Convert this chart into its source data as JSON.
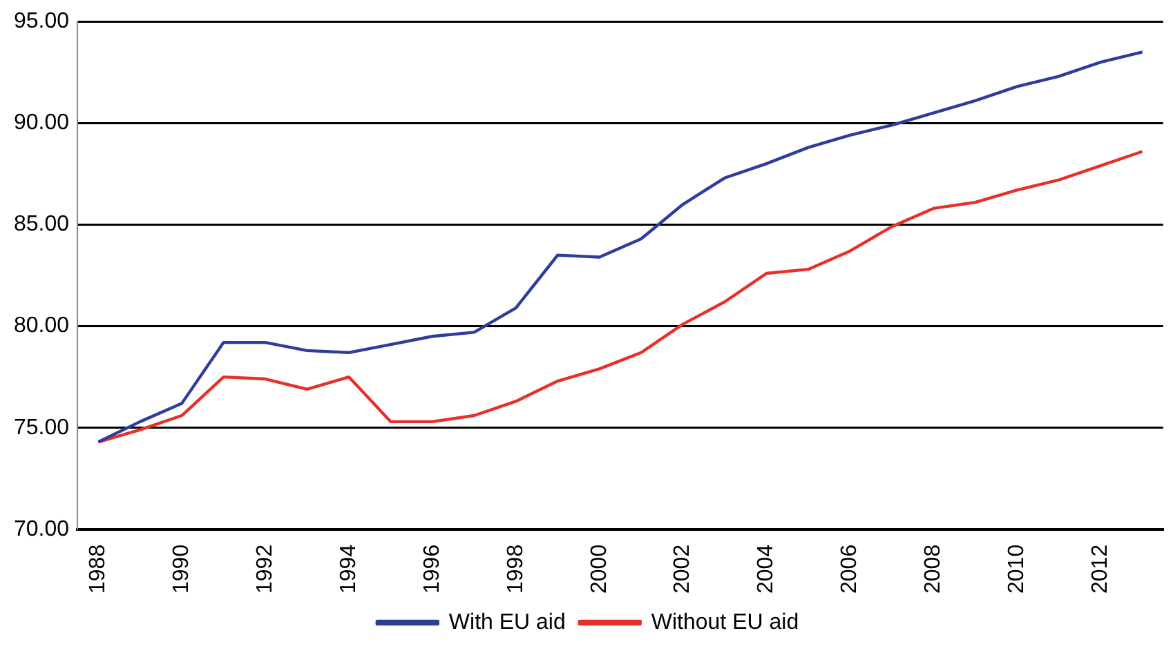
{
  "chart_data": {
    "type": "line",
    "categories": [
      "1988",
      null,
      "1990",
      null,
      "1992",
      null,
      "1994",
      null,
      "1996",
      null,
      "1998",
      null,
      "2000",
      null,
      "2002",
      null,
      "2004",
      null,
      "2006",
      null,
      "2008",
      null,
      "2010",
      null,
      "2012",
      null
    ],
    "series": [
      {
        "name": "With EU aid",
        "color": "#2e3d9c",
        "values": [
          74.3,
          75.3,
          76.2,
          79.2,
          79.2,
          78.8,
          78.7,
          79.1,
          79.5,
          79.7,
          80.9,
          83.5,
          83.4,
          84.3,
          86.0,
          87.3,
          88.0,
          88.8,
          89.4,
          89.9,
          90.5,
          91.1,
          91.8,
          92.3,
          93.0,
          93.5
        ]
      },
      {
        "name": "Without EU aid",
        "color": "#e8302a",
        "values": [
          74.3,
          74.9,
          75.6,
          77.5,
          77.4,
          76.9,
          77.5,
          75.3,
          75.3,
          75.6,
          76.3,
          77.3,
          77.9,
          78.7,
          80.1,
          81.2,
          82.6,
          82.8,
          83.7,
          84.9,
          85.8,
          86.1,
          86.7,
          87.2,
          87.9,
          88.6
        ]
      }
    ],
    "ylim": [
      70,
      95
    ],
    "yticks": [
      {
        "value": 70,
        "label": "70.00"
      },
      {
        "value": 75,
        "label": "75.00"
      },
      {
        "value": 80,
        "label": "80.00"
      },
      {
        "value": 85,
        "label": "85.00"
      },
      {
        "value": 90,
        "label": "90.00"
      },
      {
        "value": 95,
        "label": "95.00"
      }
    ],
    "grid": "y",
    "legend": "bottom",
    "marker": "none",
    "line_style": "solid"
  }
}
